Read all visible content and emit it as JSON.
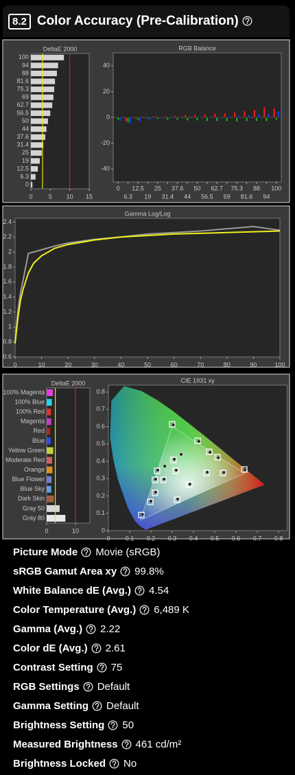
{
  "header": {
    "section": "8.2",
    "title": "Color Accuracy (Pre-Calibration)"
  },
  "chart_data": [
    {
      "type": "bar",
      "orientation": "horizontal",
      "title": "DeltaE 2000",
      "categories": [
        "100",
        "94",
        "88",
        "81.6",
        "75.3",
        "69",
        "62.7",
        "56.5",
        "50",
        "44",
        "37.6",
        "31.4",
        "25",
        "19",
        "12.5",
        "6.3",
        "0"
      ],
      "values": [
        8.5,
        7,
        6.7,
        6.2,
        6,
        5.8,
        5.5,
        5,
        4.4,
        4,
        3.7,
        3.2,
        2.8,
        2.3,
        1.8,
        1.2,
        0.4
      ],
      "color": "#d4d4d4",
      "xlim": [
        0,
        15
      ],
      "xticks": [
        0,
        5,
        10,
        15
      ],
      "reference_lines": [
        3,
        10
      ],
      "reference_colors": [
        "#e8e800",
        "#c82020"
      ]
    },
    {
      "type": "bar",
      "title": "RGB Balance",
      "categories": [
        "0",
        "6.3",
        "12.5",
        "19",
        "25",
        "31.4",
        "37.6",
        "44",
        "50",
        "56.5",
        "62.7",
        "69",
        "75.3",
        "81.6",
        "88",
        "94",
        "100"
      ],
      "series": [
        {
          "color": "#e02020",
          "values": [
            0,
            -3,
            -1,
            0,
            1,
            1,
            1.5,
            2,
            2,
            2.5,
            3,
            3.5,
            4,
            5,
            6,
            8,
            7
          ]
        },
        {
          "color": "#20a020",
          "values": [
            -2,
            -4,
            -2,
            -1,
            -1.5,
            -2,
            -2,
            -2.5,
            -2.5,
            -3,
            -3,
            -3,
            -3.5,
            -3,
            -3,
            -3,
            -2
          ]
        },
        {
          "color": "#2040e0",
          "values": [
            -3,
            -5,
            -3,
            -2,
            -1,
            -1,
            -0.5,
            0,
            0.5,
            0.5,
            1,
            1,
            1.5,
            2,
            2.5,
            3,
            5
          ]
        }
      ],
      "ylim": [
        -50,
        50
      ],
      "yticks": [
        40,
        20,
        0,
        -20,
        -40
      ]
    },
    {
      "type": "line",
      "title": "Gamma Log/Log",
      "x": [
        0,
        1,
        2,
        3,
        5,
        7,
        10,
        15,
        20,
        30,
        40,
        50,
        60,
        70,
        80,
        90,
        100
      ],
      "series": [
        {
          "color": "#9a9a9a",
          "values": [
            0.8,
            1.2,
            1.45,
            1.62,
            1.98,
            2.0,
            2.03,
            2.08,
            2.12,
            2.17,
            2.2,
            2.24,
            2.26,
            2.28,
            2.31,
            2.34,
            2.29
          ]
        },
        {
          "color": "#f0f020",
          "values": [
            0.78,
            1.1,
            1.35,
            1.5,
            1.72,
            1.85,
            1.95,
            2.05,
            2.1,
            2.16,
            2.2,
            2.22,
            2.24,
            2.25,
            2.26,
            2.27,
            2.28
          ]
        }
      ],
      "xlim": [
        0,
        100
      ],
      "xticks": [
        0,
        10,
        20,
        30,
        40,
        50,
        60,
        70,
        80,
        90,
        100
      ],
      "ylim": [
        0.6,
        2.45
      ],
      "yticks": [
        0.6,
        0.8,
        1,
        1.2,
        1.4,
        1.6,
        1.8,
        2,
        2.2,
        2.4
      ]
    },
    {
      "type": "bar",
      "orientation": "horizontal",
      "title": "DeltaE 2000",
      "categories": [
        "100% Magenta",
        "100% Blue",
        "100% Red",
        "Magenta",
        "Red",
        "Blue",
        "Yellow Green",
        "Moderate Red",
        "Orange",
        "Blue Flower",
        "Blue Sky",
        "Dark Skin",
        "Gray 50",
        "Gray 80"
      ],
      "values": [
        2.2,
        1.8,
        1.5,
        1.6,
        1.2,
        1.4,
        2.3,
        1.9,
        2.0,
        1.7,
        1.6,
        2.5,
        4.5,
        6.5
      ],
      "colors": [
        "#e040e0",
        "#2ad4e8",
        "#e03030",
        "#c040c0",
        "#c02020",
        "#3050e0",
        "#c0d040",
        "#d06060",
        "#e09020",
        "#7080d0",
        "#60a0e0",
        "#a06040",
        "#d8d8d8",
        "#e8e8e8"
      ],
      "xlim": [
        0,
        15
      ],
      "xticks": [
        0,
        10
      ],
      "reference_lines": [
        3,
        10
      ],
      "reference_colors": [
        "#e8e800",
        "#c82020"
      ]
    },
    {
      "type": "scatter",
      "title": "CIE 1931 xy",
      "series": [
        {
          "marker": "square",
          "color": "#ffffff",
          "x": [
            0.155,
            0.197,
            0.219,
            0.219,
            0.229,
            0.323,
            0.3,
            0.42,
            0.474,
            0.513,
            0.461,
            0.539,
            0.639,
            0.316,
            0.258,
            0.38,
            0.306
          ],
          "y": [
            0.09,
            0.166,
            0.218,
            0.293,
            0.345,
            0.178,
            0.614,
            0.519,
            0.455,
            0.424,
            0.333,
            0.333,
            0.353,
            0.345,
            0.293,
            0.265,
            0.408
          ]
        },
        {
          "marker": "circle",
          "color": "#202020",
          "x": [
            0.16,
            0.2,
            0.222,
            0.222,
            0.232,
            0.326,
            0.305,
            0.425,
            0.478,
            0.517,
            0.465,
            0.543,
            0.642,
            0.319,
            0.262,
            0.383,
            0.31,
            0.342,
            0.265
          ],
          "y": [
            0.093,
            0.17,
            0.222,
            0.297,
            0.349,
            0.182,
            0.61,
            0.515,
            0.452,
            0.421,
            0.337,
            0.336,
            0.35,
            0.349,
            0.297,
            0.268,
            0.412,
            0.44,
            0.372
          ]
        }
      ],
      "xlim": [
        0,
        0.84
      ],
      "xticks": [
        0,
        0.1,
        0.2,
        0.3,
        0.4,
        0.5,
        0.6,
        0.7,
        0.8
      ],
      "ylim": [
        0,
        0.84
      ],
      "yticks": [
        0,
        0.1,
        0.2,
        0.3,
        0.4,
        0.5,
        0.6,
        0.7,
        0.8
      ]
    }
  ],
  "details": [
    {
      "label": "Picture Mode",
      "value": "Movie (sRGB)"
    },
    {
      "label": "sRGB Gamut Area xy",
      "value": "99.8%"
    },
    {
      "label": "White Balance dE (Avg.)",
      "value": "4.54"
    },
    {
      "label": "Color Temperature (Avg.)",
      "value": "6,489 K"
    },
    {
      "label": "Gamma (Avg.)",
      "value": "2.22"
    },
    {
      "label": "Color dE (Avg.)",
      "value": "2.61"
    },
    {
      "label": "Contrast Setting",
      "value": "75"
    },
    {
      "label": "RGB Settings",
      "value": "Default"
    },
    {
      "label": "Gamma Setting",
      "value": "Default"
    },
    {
      "label": "Brightness Setting",
      "value": "50"
    },
    {
      "label": "Measured Brightness",
      "value": "461 cd/m²"
    },
    {
      "label": "Brightness Locked",
      "value": "No"
    }
  ]
}
